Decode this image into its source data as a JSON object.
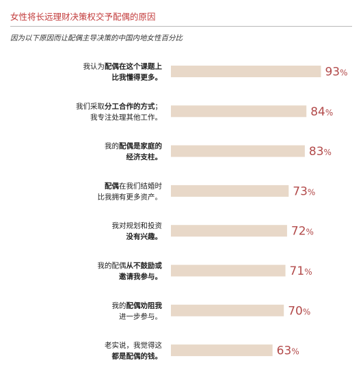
{
  "title": "女性将长远理财决策权交予配偶的原因",
  "subtitle": "因为以下原因而让配偶主导决策的中国内地女性百分比",
  "colors": {
    "bar": "#e8d8c8",
    "value_text": "#b24a4a",
    "title": "#c23a3a"
  },
  "chart_data": {
    "type": "bar",
    "orientation": "horizontal",
    "unit": "%",
    "xlim": [
      0,
      100
    ],
    "grid": false,
    "categories": [
      "我认为配偶在这个课题上比我懂得更多。",
      "我们采取分工合作的方式；我专注处理其他工作。",
      "我的配偶是家庭的经济支柱。",
      "配偶在我们结婚时比我拥有更多资产。",
      "我对规划和投资没有兴趣。",
      "我的配偶从不鼓励或邀请我参与。",
      "我的配偶劝阻我进一步参与。",
      "老实说，我觉得这都是配偶的钱。"
    ],
    "category_lines": [
      [
        [
          {
            "t": "我认为",
            "b": false
          },
          {
            "t": "配偶在这个课题上",
            "b": true
          }
        ],
        [
          {
            "t": "比我懂得更多。",
            "b": true
          }
        ]
      ],
      [
        [
          {
            "t": "我们采取",
            "b": false
          },
          {
            "t": "分工合作的方式",
            "b": true
          },
          {
            "t": "；",
            "b": false
          }
        ],
        [
          {
            "t": "我专注处理其他工作。",
            "b": false
          }
        ]
      ],
      [
        [
          {
            "t": "我的",
            "b": false
          },
          {
            "t": "配偶是家庭的",
            "b": true
          }
        ],
        [
          {
            "t": "经济支柱。",
            "b": true
          }
        ]
      ],
      [
        [
          {
            "t": "配偶",
            "b": true
          },
          {
            "t": "在我们结婚时",
            "b": false
          }
        ],
        [
          {
            "t": "比我拥有更多资产。",
            "b": false
          }
        ]
      ],
      [
        [
          {
            "t": "我对规划和投资",
            "b": false
          }
        ],
        [
          {
            "t": "没有兴趣。",
            "b": true
          }
        ]
      ],
      [
        [
          {
            "t": "我的配偶",
            "b": false
          },
          {
            "t": "从不鼓励或",
            "b": true
          }
        ],
        [
          {
            "t": "邀请我参与。",
            "b": true
          }
        ]
      ],
      [
        [
          {
            "t": "我的",
            "b": false
          },
          {
            "t": "配偶劝阻我",
            "b": true
          }
        ],
        [
          {
            "t": "进一步参与。",
            "b": false
          }
        ]
      ],
      [
        [
          {
            "t": "老实说，我觉得这",
            "b": false
          }
        ],
        [
          {
            "t": "都是配偶的钱。",
            "b": true
          }
        ]
      ]
    ],
    "values": [
      93,
      84,
      83,
      73,
      72,
      71,
      70,
      63
    ],
    "value_labels": [
      "93",
      "84",
      "83",
      "73",
      "72",
      "71",
      "70",
      "63"
    ],
    "value_suffix": "%"
  }
}
